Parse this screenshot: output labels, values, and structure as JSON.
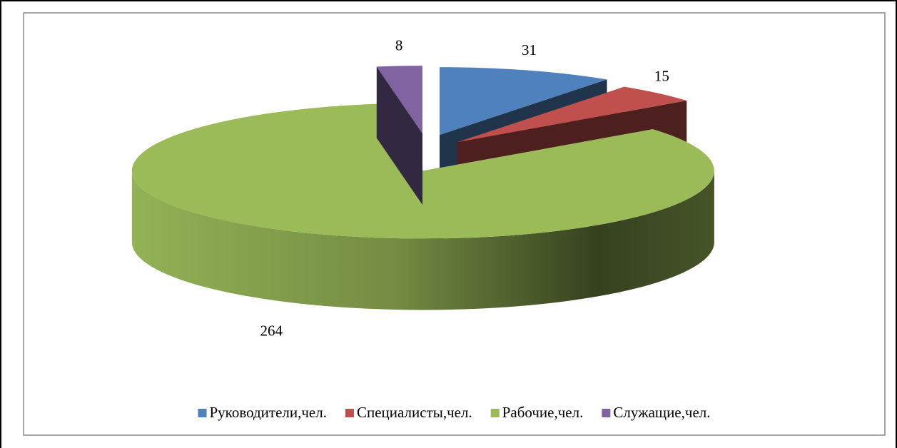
{
  "chart_data": {
    "type": "pie",
    "categories": [
      "Руководители,чел.",
      "Специалисты,чел.",
      "Рабочие,чел.",
      "Служащие,чел."
    ],
    "values": [
      31,
      15,
      264,
      8
    ],
    "colors": [
      "#4f81bd",
      "#c0504d",
      "#9bbb59",
      "#8064a2"
    ],
    "legend": "bottom"
  }
}
